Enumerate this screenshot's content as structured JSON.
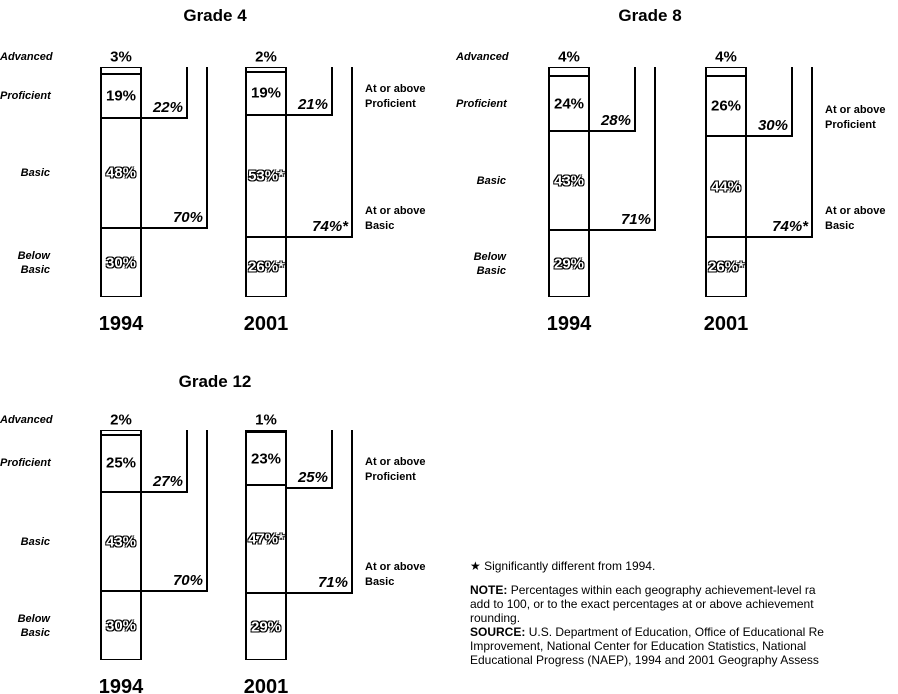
{
  "chart_data": [
    {
      "type": "stacked_bar",
      "title": "Grade 4",
      "categories": [
        "1994",
        "2001"
      ],
      "series": [
        {
          "name": "Advanced",
          "values": [
            3,
            2
          ],
          "value_labels": [
            "3%",
            "2%"
          ]
        },
        {
          "name": "Proficient",
          "values": [
            19,
            19
          ],
          "value_labels": [
            "19%",
            "19%"
          ]
        },
        {
          "name": "Basic",
          "values": [
            48,
            53
          ],
          "value_labels": [
            "48%",
            "53%*"
          ]
        },
        {
          "name": "Below Basic",
          "values": [
            30,
            26
          ],
          "value_labels": [
            "30%",
            "26%*"
          ]
        }
      ],
      "cumulative": [
        {
          "name": "At or above Proficient",
          "values": [
            22,
            21
          ],
          "value_labels": [
            "22%",
            "21%"
          ]
        },
        {
          "name": "At or above Basic",
          "values": [
            70,
            74
          ],
          "value_labels": [
            "70%",
            "74%*"
          ]
        }
      ]
    },
    {
      "type": "stacked_bar",
      "title": "Grade 8",
      "categories": [
        "1994",
        "2001"
      ],
      "series": [
        {
          "name": "Advanced",
          "values": [
            4,
            4
          ],
          "value_labels": [
            "4%",
            "4%"
          ]
        },
        {
          "name": "Proficient",
          "values": [
            24,
            26
          ],
          "value_labels": [
            "24%",
            "26%"
          ]
        },
        {
          "name": "Basic",
          "values": [
            43,
            44
          ],
          "value_labels": [
            "43%",
            "44%"
          ]
        },
        {
          "name": "Below Basic",
          "values": [
            29,
            26
          ],
          "value_labels": [
            "29%",
            "26%*"
          ]
        }
      ],
      "cumulative": [
        {
          "name": "At or above Proficient",
          "values": [
            28,
            30
          ],
          "value_labels": [
            "28%",
            "30%"
          ]
        },
        {
          "name": "At or above Basic",
          "values": [
            71,
            74
          ],
          "value_labels": [
            "71%",
            "74%*"
          ]
        }
      ]
    },
    {
      "type": "stacked_bar",
      "title": "Grade 12",
      "categories": [
        "1994",
        "2001"
      ],
      "series": [
        {
          "name": "Advanced",
          "values": [
            2,
            1
          ],
          "value_labels": [
            "2%",
            "1%"
          ]
        },
        {
          "name": "Proficient",
          "values": [
            25,
            23
          ],
          "value_labels": [
            "25%",
            "23%"
          ]
        },
        {
          "name": "Basic",
          "values": [
            43,
            47
          ],
          "value_labels": [
            "43%",
            "47%*"
          ]
        },
        {
          "name": "Below Basic",
          "values": [
            30,
            29
          ],
          "value_labels": [
            "30%",
            "29%"
          ]
        }
      ],
      "cumulative": [
        {
          "name": "At or above Proficient",
          "values": [
            27,
            25
          ],
          "value_labels": [
            "27%",
            "25%"
          ]
        },
        {
          "name": "At or above Basic",
          "values": [
            70,
            71
          ],
          "value_labels": [
            "70%",
            "71%"
          ]
        }
      ]
    }
  ],
  "footnote": {
    "star": "★ Significantly different from 1994.",
    "note_label": "NOTE:",
    "note_lines": [
      "Percentages within each geography achievement-level ra",
      "add to 100, or to the exact percentages at or above achievement",
      "rounding."
    ],
    "source_label": "SOURCE:",
    "source_lines": [
      "U.S. Department of Education, Office of Educational Re",
      "Improvement, National Center for Education Statistics, National",
      "Educational Progress (NAEP), 1994 and 2001 Geography Assess"
    ]
  }
}
